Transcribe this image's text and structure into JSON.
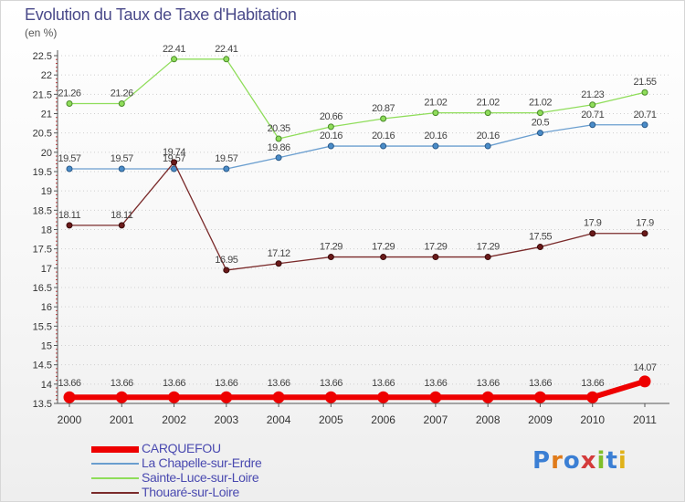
{
  "header": {
    "title": "Evolution du Taux de Taxe d'Habitation",
    "subtitle": "(en %)"
  },
  "logo": {
    "text": "Proxiti",
    "letter_colors": [
      "#3b7fd4",
      "#e07b1a",
      "#3b7fd4",
      "#d43b3b",
      "#7fbf2a",
      "#3b7fd4",
      "#e0b21a"
    ]
  },
  "chart_data": {
    "type": "line",
    "title": "Evolution du Taux de Taxe d'Habitation",
    "ylabel": "(en %)",
    "ylim": [
      13.5,
      22.5
    ],
    "y_ticks": [
      13.5,
      14,
      14.5,
      15,
      15.5,
      16,
      16.5,
      17,
      17.5,
      18,
      18.5,
      19,
      19.5,
      20,
      20.5,
      21,
      21.5,
      22,
      22.5
    ],
    "y_tick_labels": [
      "13.5",
      "14",
      "14.5",
      "15",
      "15.5",
      "16",
      "16.5",
      "17",
      "17.5",
      "18",
      "18.5",
      "19",
      "19.5",
      "20",
      "20.5",
      "21",
      "21.5",
      "22",
      "22.5"
    ],
    "categories": [
      "2000",
      "2001",
      "2002",
      "2003",
      "2004",
      "2005",
      "2006",
      "2007",
      "2008",
      "2009",
      "2010",
      "2011"
    ],
    "grid": "horizontal dotted",
    "legend_position": "bottom-left",
    "series": [
      {
        "name": "CARQUEFOU",
        "color": "#ee0000",
        "values": [
          13.66,
          13.66,
          13.66,
          13.66,
          13.66,
          13.66,
          13.66,
          13.66,
          13.66,
          13.66,
          13.66,
          14.07
        ],
        "labels": [
          "13.66",
          "13.66",
          "13.66",
          "13.66",
          "13.66",
          "13.66",
          "13.66",
          "13.66",
          "13.66",
          "13.66",
          "13.66",
          "14.07"
        ]
      },
      {
        "name": "La Chapelle-sur-Erdre",
        "color": "#6a9ecf",
        "values": [
          19.57,
          19.57,
          19.57,
          19.57,
          19.86,
          20.16,
          20.16,
          20.16,
          20.16,
          20.5,
          20.71,
          20.71
        ],
        "labels": [
          "19.57",
          "19.57",
          "19.57",
          "19.57",
          "19.86",
          "20.16",
          "20.16",
          "20.16",
          "20.16",
          "20.5",
          "20.71",
          "20.71"
        ]
      },
      {
        "name": "Sainte-Luce-sur-Loire",
        "color": "#8fdd5a",
        "values": [
          21.26,
          21.26,
          22.41,
          22.41,
          20.35,
          20.66,
          20.87,
          21.02,
          21.02,
          21.02,
          21.23,
          21.55
        ],
        "labels": [
          "21.26",
          "21.26",
          "22.41",
          "22.41",
          "20.35",
          "20.66",
          "20.87",
          "21.02",
          "21.02",
          "21.02",
          "21.23",
          "21.55"
        ]
      },
      {
        "name": "Thouaré-sur-Loire",
        "color": "#7a2a2a",
        "values": [
          18.11,
          18.11,
          19.74,
          16.95,
          17.12,
          17.29,
          17.29,
          17.29,
          17.29,
          17.55,
          17.9,
          17.9
        ],
        "labels": [
          "18.11",
          "18.11",
          "19.74",
          "16.95",
          "17.12",
          "17.29",
          "17.29",
          "17.29",
          "17.29",
          "17.55",
          "17.9",
          "17.9"
        ]
      }
    ]
  }
}
